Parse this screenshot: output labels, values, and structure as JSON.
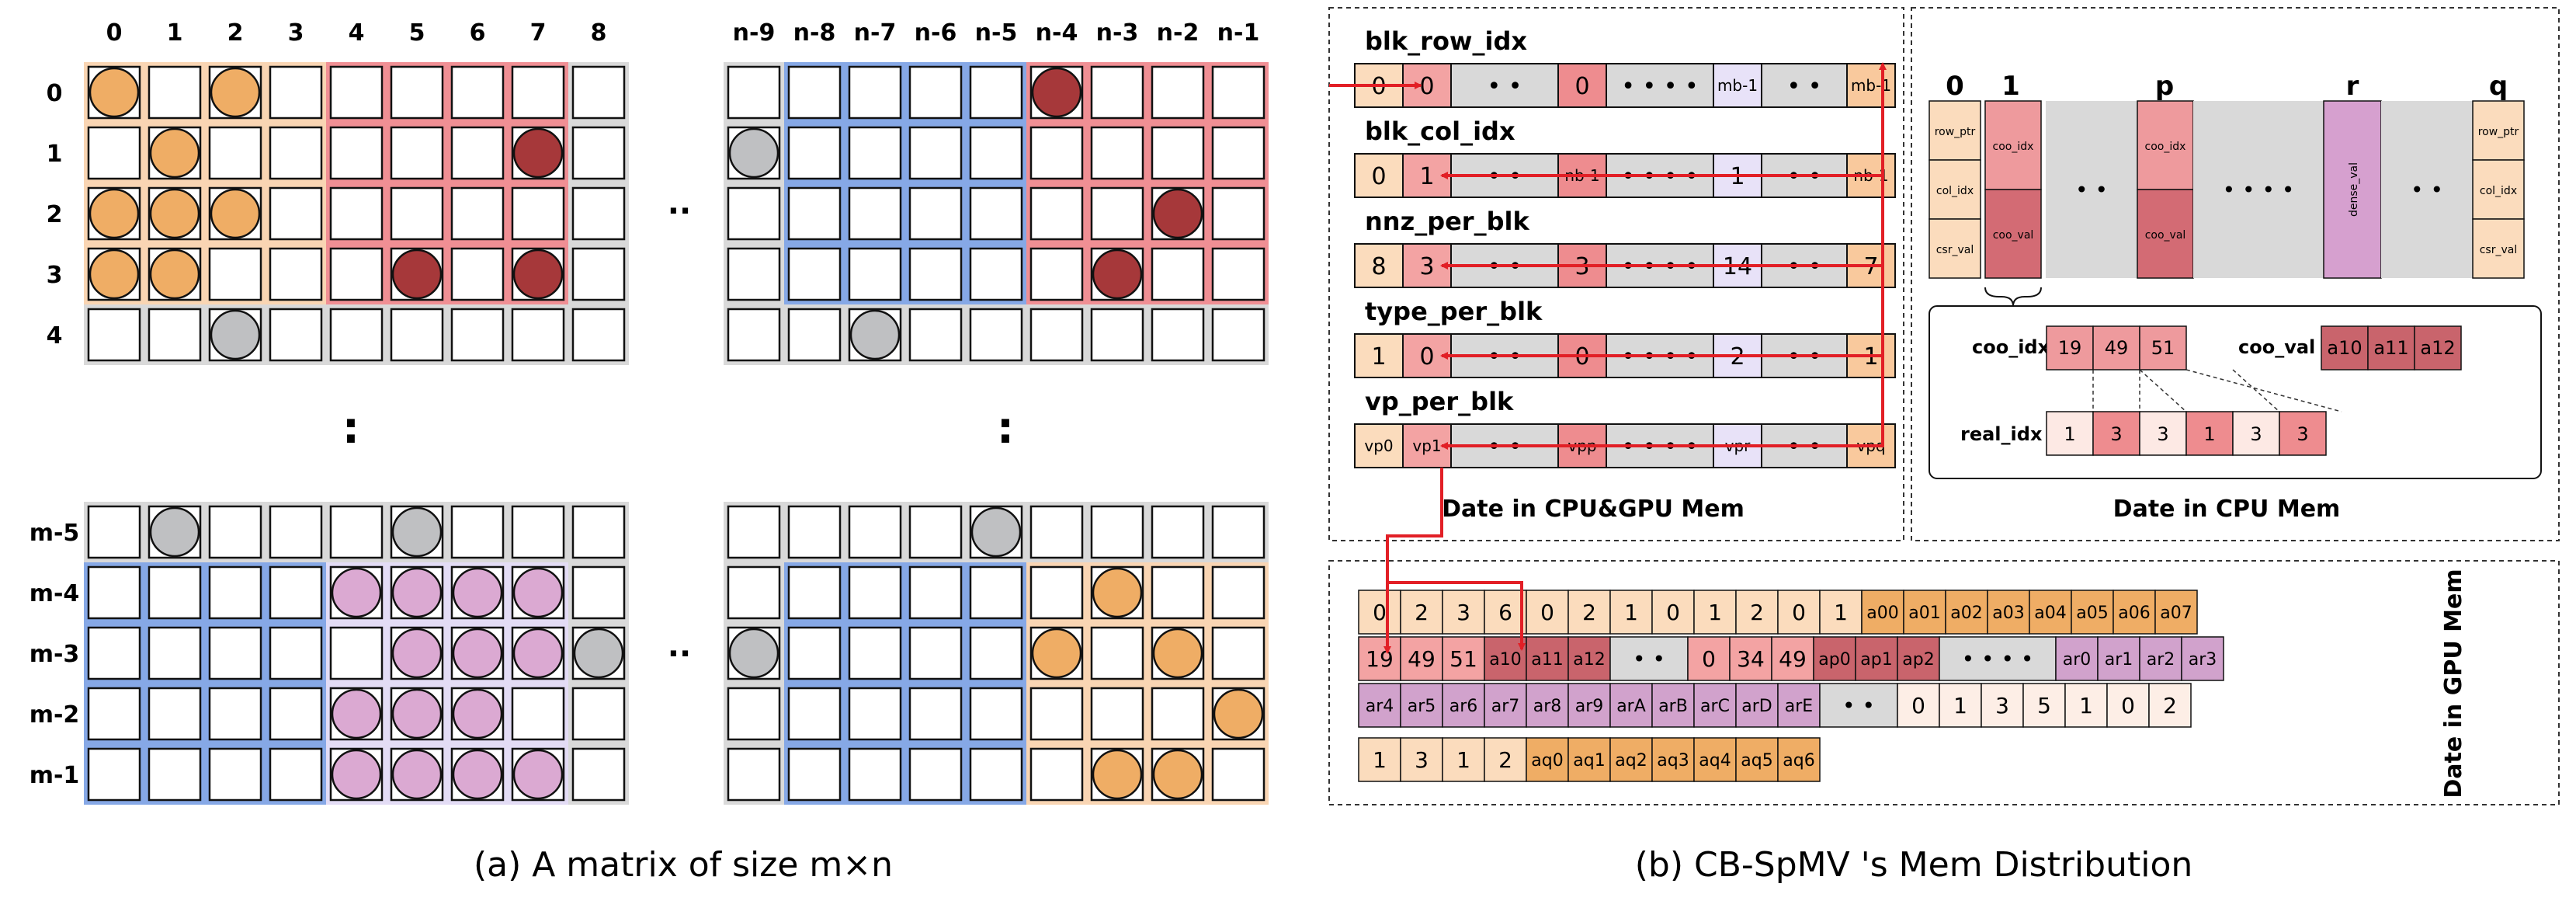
{
  "matrix": {
    "col_labels_left": [
      "0",
      "1",
      "2",
      "3",
      "4",
      "5",
      "6",
      "7",
      "8"
    ],
    "col_labels_right": [
      "n-9",
      "n-8",
      "n-7",
      "n-6",
      "n-5",
      "n-4",
      "n-3",
      "n-2",
      "n-1"
    ],
    "row_labels_top": [
      "0",
      "1",
      "2",
      "3",
      "4"
    ],
    "row_labels_bottom": [
      "m-5",
      "m-4",
      "m-3",
      "m-2",
      "m-1"
    ],
    "h_ellipsis": "··",
    "v_ellipsis": ":",
    "caption": "(a)  A matrix of size m×n"
  },
  "cpu_gpu": {
    "arrays": [
      {
        "name": "blk_row_idx",
        "cells": [
          "0",
          "0",
          "• •",
          "0",
          "• • • •",
          "mb-1",
          "• •",
          "mb-1"
        ]
      },
      {
        "name": "blk_col_idx",
        "cells": [
          "0",
          "1",
          "• •",
          "nb-1",
          "• • • •",
          "1",
          "• •",
          "nb-1"
        ]
      },
      {
        "name": "nnz_per_blk",
        "cells": [
          "8",
          "3",
          "• •",
          "3",
          "• • • •",
          "14",
          "• •",
          "7"
        ]
      },
      {
        "name": "type_per_blk",
        "cells": [
          "1",
          "0",
          "• •",
          "0",
          "• • • •",
          "2",
          "• •",
          "1"
        ]
      },
      {
        "name": "vp_per_blk",
        "cells": [
          "vp0",
          "vp1",
          "• •",
          "vpp",
          "• • • •",
          "vpr",
          "• •",
          "vpq"
        ]
      }
    ],
    "title": "Date in CPU&GPU Mem"
  },
  "cpu": {
    "col_labels": [
      "0",
      "1",
      "p",
      "r",
      "q"
    ],
    "col0_cells": [
      "row_ptr",
      "col_idx",
      "csr_val"
    ],
    "col1_cells": [
      "coo_idx",
      "coo_val"
    ],
    "colp_cells": [
      "coo_idx",
      "coo_val"
    ],
    "colr_cell": "dense_val",
    "colq_cells": [
      "row_ptr",
      "col_idx",
      "csr_val"
    ],
    "dots1": "• •",
    "dots2": "• • • •",
    "dots3": "• •",
    "coo_idx_label": "coo_idx",
    "coo_idx_values": [
      "19",
      "49",
      "51"
    ],
    "coo_val_label": "coo_val",
    "coo_val_values": [
      "a10",
      "a11",
      "a12"
    ],
    "real_idx_label": "real_idx",
    "real_idx_values": [
      "1",
      "3",
      "3",
      "1",
      "3",
      "3"
    ],
    "title": "Date in CPU Mem"
  },
  "gpu": {
    "row1": [
      "0",
      "2",
      "3",
      "6",
      "0",
      "2",
      "1",
      "0",
      "1",
      "2",
      "0",
      "1",
      "a00",
      "a01",
      "a02",
      "a03",
      "a04",
      "a05",
      "a06",
      "a07"
    ],
    "row2": [
      "19",
      "49",
      "51",
      "a10",
      "a11",
      "a12",
      "• •",
      "0",
      "34",
      "49",
      "ap0",
      "ap1",
      "ap2",
      "• • • •",
      "ar0",
      "ar1",
      "ar2",
      "ar3"
    ],
    "row3": [
      "ar4",
      "ar5",
      "ar6",
      "ar7",
      "ar8",
      "ar9",
      "arA",
      "arB",
      "arC",
      "arD",
      "arE",
      "• •",
      "0",
      "1",
      "3",
      "5",
      "1",
      "0",
      "2"
    ],
    "row4": [
      "1",
      "3",
      "1",
      "2",
      "aq0",
      "aq1",
      "aq2",
      "aq3",
      "aq4",
      "aq5",
      "aq6"
    ],
    "title": "Date in GPU Mem",
    "caption": "(b) CB-SpMV 's Mem Distribution"
  },
  "colors": {
    "orange_bg": "#f9d5b3",
    "orange_cell": "#f7b07e",
    "orange_dot": "#efad65",
    "red_bg": "#f08f94",
    "red_cell": "#e88487",
    "dark_red_dot": "#a6383a",
    "blue_bg": "#86a8e6",
    "purple_bg": "#e3dcf5",
    "purple_dot": "#dba9d2",
    "gray_bg": "#d9d9d9",
    "gray_dot": "#bfc0c2",
    "arrow": "#e21f26"
  }
}
